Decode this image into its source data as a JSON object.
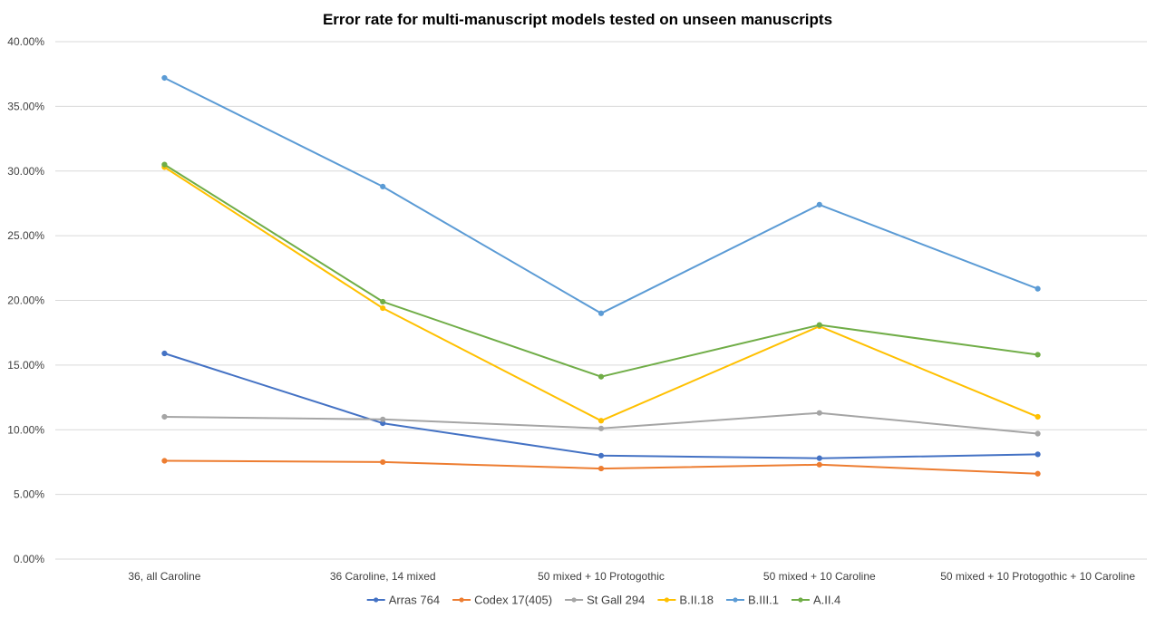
{
  "chart_data": {
    "type": "line",
    "title": "Error rate for multi-manuscript models tested on unseen manuscripts",
    "xlabel": "",
    "ylabel": "",
    "categories": [
      "36, all Caroline",
      "36 Caroline, 14 mixed",
      "50 mixed + 10 Protogothic",
      "50 mixed + 10 Caroline",
      "50 mixed + 10 Protogothic + 10 Caroline"
    ],
    "ylim": [
      0,
      0.4
    ],
    "yticks": [
      0,
      0.05,
      0.1,
      0.15,
      0.2,
      0.25,
      0.3,
      0.35,
      0.4
    ],
    "ytick_labels": [
      "0.00%",
      "5.00%",
      "10.00%",
      "15.00%",
      "20.00%",
      "25.00%",
      "30.00%",
      "35.00%",
      "40.00%"
    ],
    "grid": true,
    "legend_position": "bottom",
    "series": [
      {
        "name": "Arras 764",
        "color": "#4472c4",
        "values": [
          0.159,
          0.105,
          0.08,
          0.078,
          0.081
        ]
      },
      {
        "name": "Codex 17(405)",
        "color": "#ed7d31",
        "values": [
          0.076,
          0.075,
          0.07,
          0.073,
          0.066
        ]
      },
      {
        "name": "St Gall 294",
        "color": "#a5a5a5",
        "values": [
          0.11,
          0.108,
          0.101,
          0.113,
          0.097
        ]
      },
      {
        "name": "B.II.18",
        "color": "#ffc000",
        "values": [
          0.303,
          0.194,
          0.107,
          0.18,
          0.11
        ]
      },
      {
        "name": "B.III.1",
        "color": "#5b9bd5",
        "values": [
          0.372,
          0.288,
          0.19,
          0.274,
          0.209
        ]
      },
      {
        "name": "A.II.4",
        "color": "#70ad47",
        "values": [
          0.305,
          0.199,
          0.141,
          0.181,
          0.158
        ]
      }
    ]
  }
}
